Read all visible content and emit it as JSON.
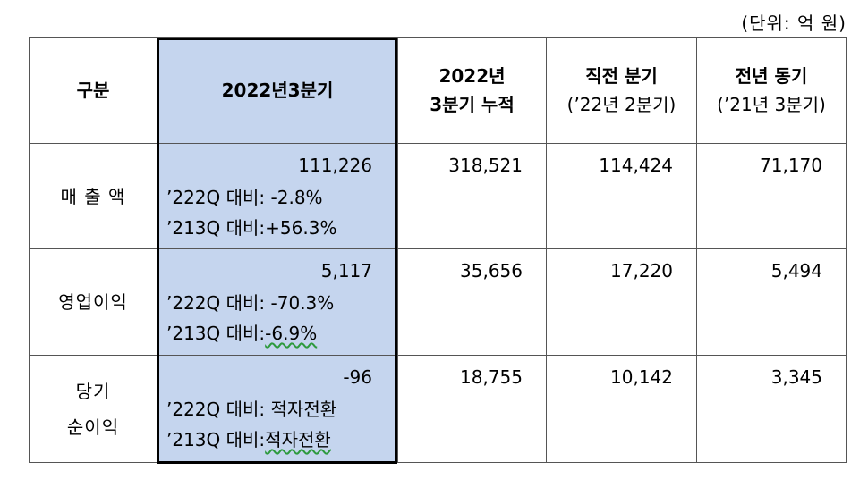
{
  "unit_label": "(단위: 억 원)",
  "headers": {
    "category": "구분",
    "q3_2022": "2022년3분기",
    "cumulative_line1": "2022년",
    "cumulative_line2": "3분기 누적",
    "prev_quarter_line1": "직전 분기",
    "prev_quarter_line2": "(’22년 2분기)",
    "prev_year_line1": "전년 동기",
    "prev_year_line2": "(’21년 3분기)"
  },
  "rows": [
    {
      "label_line1": "매 출 액",
      "label_line2": "",
      "q3_value": "111,226",
      "qoq": "’222Q 대비: -2.8%",
      "yoy_prefix": "’213Q 대비:",
      "yoy_value": "+56.3%",
      "cumulative": "318,521",
      "prev_quarter": "114,424",
      "prev_year": "71,170"
    },
    {
      "label_line1": "영업이익",
      "label_line2": "",
      "q3_value": "5,117",
      "qoq": "’222Q 대비: -70.3%",
      "yoy_prefix": "’213Q 대비:",
      "yoy_value": "-6.9%",
      "cumulative": "35,656",
      "prev_quarter": "17,220",
      "prev_year": "5,494"
    },
    {
      "label_line1": "당기",
      "label_line2": "순이익",
      "q3_value": "-96",
      "qoq": "’222Q 대비: 적자전환",
      "yoy_prefix": "’213Q 대비:",
      "yoy_value": "적자전환",
      "cumulative": "18,755",
      "prev_quarter": "10,142",
      "prev_year": "3,345"
    }
  ]
}
